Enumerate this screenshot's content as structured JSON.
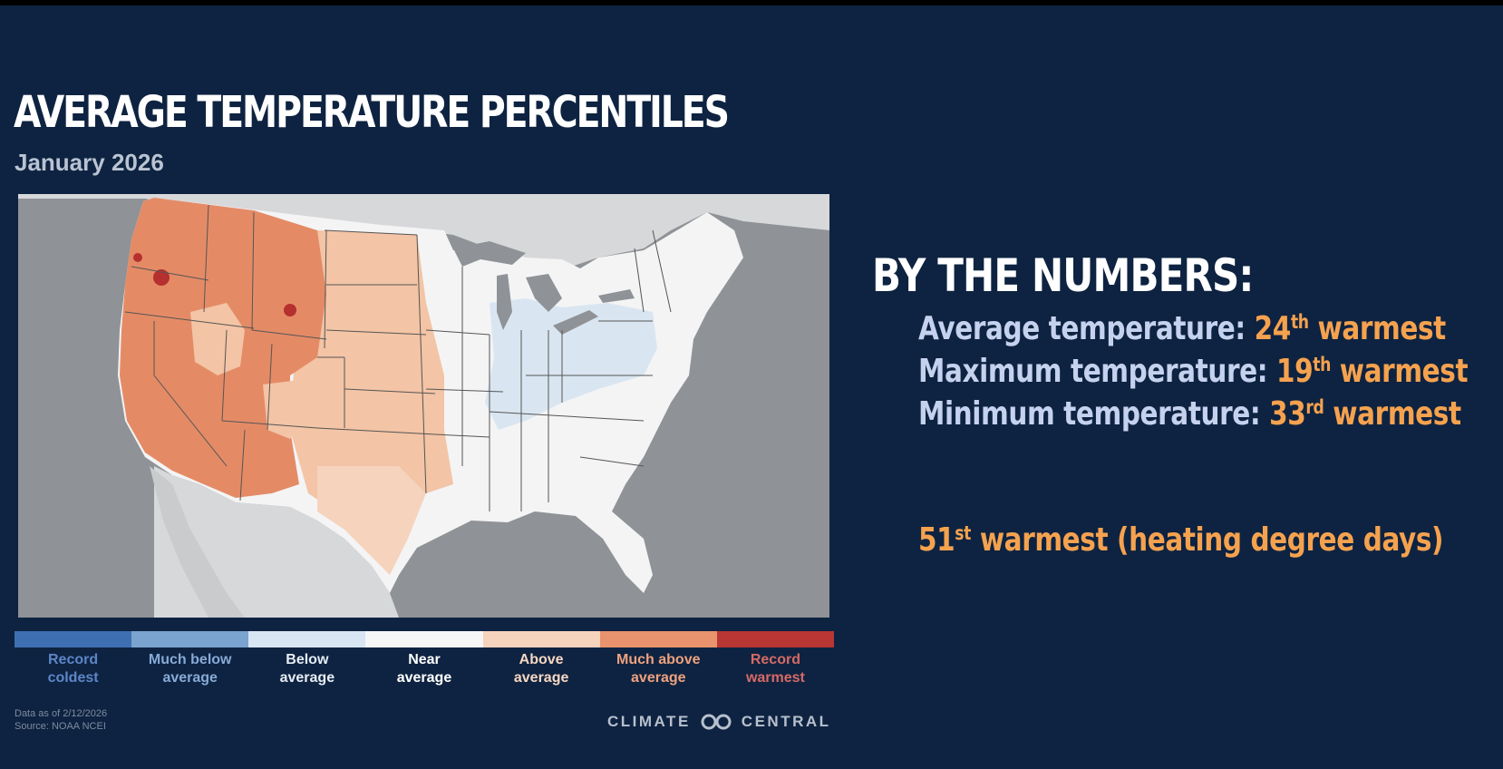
{
  "title": "AVERAGE TEMPERATURE PERCENTILES",
  "subtitle": "January 2026",
  "map": {
    "colors": {
      "background_land": "#d7d8da",
      "water": "#8f9296",
      "near_average": "#f4f4f5",
      "below_average": "#d9e6f1",
      "above_average": "#f3c4a5",
      "much_above_average": "#e48b66",
      "record_warmest": "#b5302e",
      "state_border": "#555555"
    }
  },
  "legend": {
    "items": [
      {
        "label_line1": "Record",
        "label_line2": "coldest",
        "swatch": "#3f6fb3",
        "text_color": "#5d86c8"
      },
      {
        "label_line1": "Much below",
        "label_line2": "average",
        "swatch": "#7aa3cf",
        "text_color": "#87aad6"
      },
      {
        "label_line1": "Below",
        "label_line2": "average",
        "swatch": "#d8e6f3",
        "text_color": "#e6edf5"
      },
      {
        "label_line1": "Near",
        "label_line2": "average",
        "swatch": "#f6f6f6",
        "text_color": "#ffffff"
      },
      {
        "label_line1": "Above",
        "label_line2": "average",
        "swatch": "#f6d3bd",
        "text_color": "#f6d7c3"
      },
      {
        "label_line1": "Much above",
        "label_line2": "average",
        "swatch": "#e8936d",
        "text_color": "#eea27f"
      },
      {
        "label_line1": "Record",
        "label_line2": "warmest",
        "swatch": "#b83634",
        "text_color": "#d66a66"
      }
    ]
  },
  "footnote": {
    "line1": "Data as of 2/12/2026",
    "line2": "Source: NOAA NCEI"
  },
  "brand": {
    "left": "CLIMATE",
    "right": "CENTRAL",
    "logo_icon": "infinity-rings-icon"
  },
  "numbers": {
    "heading": "BY THE NUMBERS:",
    "stats": [
      {
        "label": "Average temperature:",
        "rank": "24",
        "suffix": "th",
        "tail": "warmest"
      },
      {
        "label": "Maximum temperature:",
        "rank": "19",
        "suffix": "th",
        "tail": "warmest"
      },
      {
        "label": "Minimum temperature:",
        "rank": "33",
        "suffix": "rd",
        "tail": "warmest"
      }
    ],
    "hdd": {
      "rank": "51",
      "suffix": "st",
      "tail": "warmest (heating degree days)"
    }
  }
}
